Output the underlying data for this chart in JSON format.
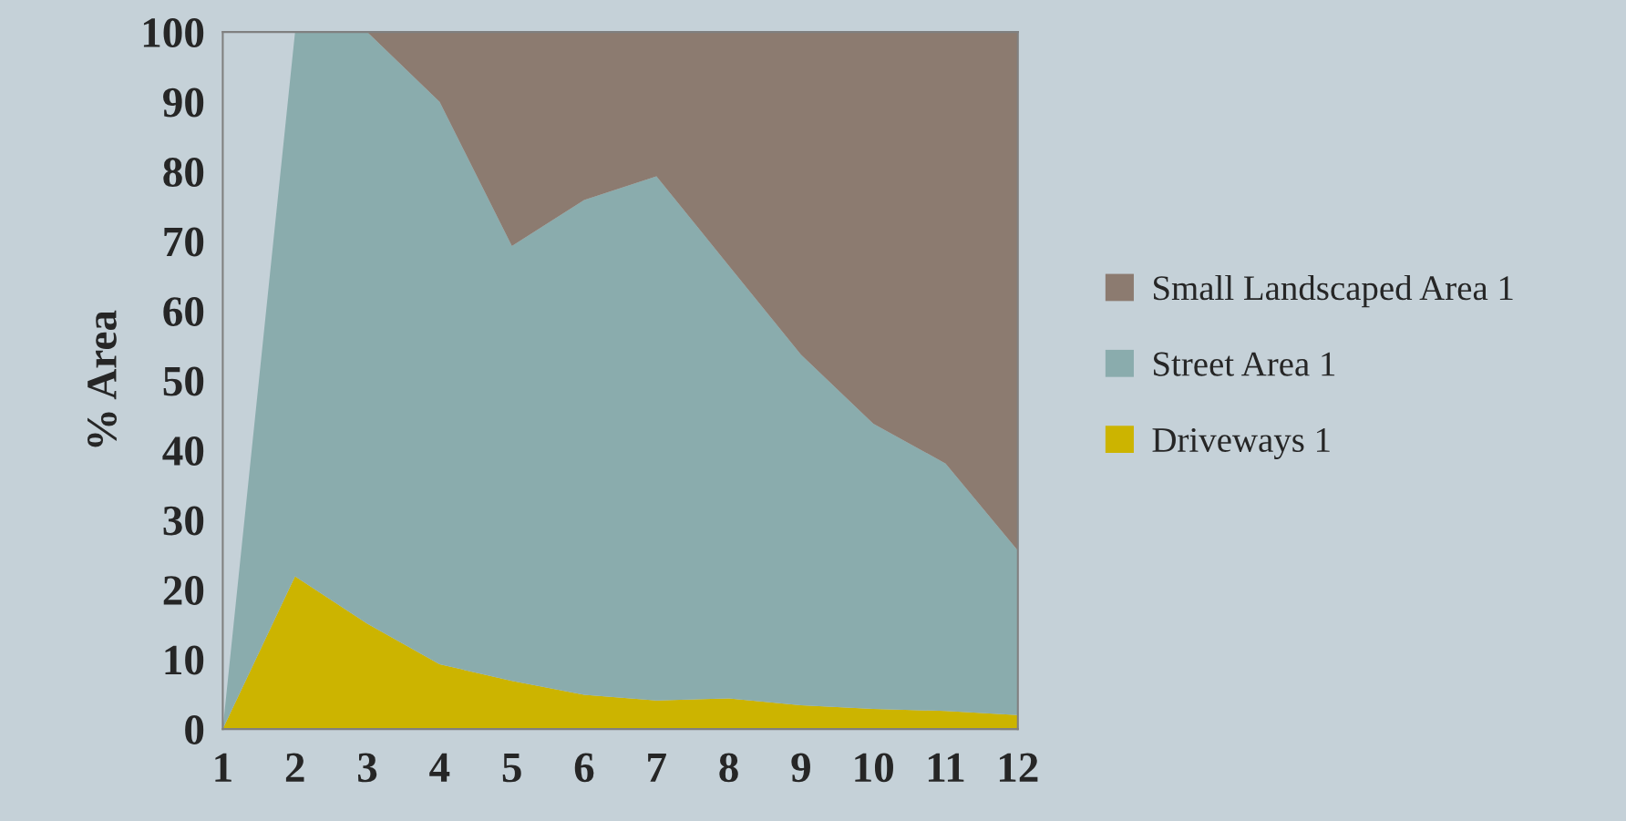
{
  "chart_data": {
    "type": "area",
    "stacked": true,
    "ylabel": "% Area",
    "categories": [
      "1",
      "2",
      "3",
      "4",
      "5",
      "6",
      "7",
      "8",
      "9",
      "10",
      "11",
      "12"
    ],
    "series": [
      {
        "name": "Driveways 1",
        "color": "#ccb400",
        "values": [
          0,
          21.9,
          15.1,
          9.3,
          6.9,
          4.9,
          4.1,
          4.4,
          3.4,
          2.9,
          2.6,
          2.0
        ]
      },
      {
        "name": "Street Area 1",
        "color": "#8aacad",
        "values": [
          0,
          78.1,
          84.9,
          80.7,
          62.4,
          71.0,
          75.2,
          62.1,
          50.3,
          40.9,
          35.5,
          23.6
        ]
      },
      {
        "name": "Small Landscaped Area 1",
        "color": "#8c7b70",
        "values": [
          null,
          null,
          0,
          10.0,
          30.7,
          24.1,
          20.7,
          33.5,
          46.3,
          56.2,
          61.9,
          74.4
        ]
      }
    ],
    "ylim": [
      0,
      100
    ],
    "yticks": [
      0,
      10,
      20,
      30,
      40,
      50,
      60,
      70,
      80,
      90,
      100
    ],
    "grid": false,
    "legend": "right"
  }
}
